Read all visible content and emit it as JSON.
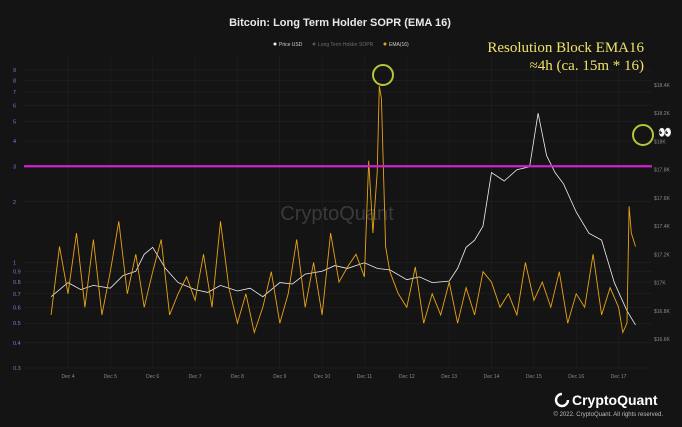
{
  "chart_data": {
    "type": "line",
    "title": "Bitcoin: Long Term Holder SOPR (EMA 16)",
    "legend": [
      "Price USD",
      "Long Term Holder SOPR",
      "EMA(16)"
    ],
    "x_ticks": [
      "Dec 4",
      "Dec 5",
      "Dec 6",
      "Dec 7",
      "Dec 8",
      "Dec 9",
      "Dec 10",
      "Dec 11",
      "Dec 12",
      "Dec 13",
      "Dec 14",
      "Dec 15",
      "Dec 16",
      "Dec 17"
    ],
    "left_axis": {
      "scale": "log",
      "ticks": [
        "9",
        "8",
        "7",
        "6",
        "5",
        "4",
        "3",
        "2",
        "1",
        "0.9",
        "0.8",
        "0.7",
        "0.6",
        "0.5",
        "0.4",
        "0.3"
      ]
    },
    "right_axis": {
      "ticks": [
        "$18.4K",
        "$18.2K",
        "$18K",
        "$17.8K",
        "$17.6K",
        "$17.4K",
        "$17.2K",
        "$17K",
        "$16.8K",
        "$16.6K"
      ]
    },
    "threshold_line": {
      "value": 3,
      "color": "#d020d0"
    },
    "series": [
      {
        "name": "Price USD",
        "color": "#f0f0f0",
        "x": [
          3.6,
          4.0,
          4.3,
          4.6,
          5.0,
          5.3,
          5.6,
          5.8,
          6.0,
          6.3,
          6.6,
          7.0,
          7.3,
          7.6,
          8.0,
          8.3,
          8.6,
          9.0,
          9.3,
          9.6,
          10.0,
          10.3,
          10.6,
          11.0,
          11.3,
          11.6,
          12.0,
          12.3,
          12.6,
          13.0,
          13.2,
          13.4,
          13.6,
          13.8,
          14.0,
          14.3,
          14.6,
          14.9,
          15.1,
          15.3,
          15.5,
          15.7,
          16.0,
          16.3,
          16.6,
          16.9,
          17.2,
          17.4
        ],
        "y": [
          16900,
          17000,
          16950,
          16980,
          16960,
          17050,
          17080,
          17200,
          17250,
          17100,
          17000,
          16950,
          16930,
          16980,
          16940,
          16960,
          16900,
          17000,
          16990,
          17060,
          17080,
          17120,
          17100,
          17140,
          17100,
          17090,
          17020,
          17040,
          17000,
          17010,
          17100,
          17250,
          17300,
          17400,
          17780,
          17720,
          17800,
          17820,
          18200,
          17900,
          17780,
          17700,
          17500,
          17350,
          17300,
          17000,
          16800,
          16700
        ]
      },
      {
        "name": "EMA(16)",
        "color": "#e8a317",
        "x": [
          3.6,
          3.8,
          4.0,
          4.2,
          4.4,
          4.6,
          4.8,
          5.0,
          5.2,
          5.4,
          5.6,
          5.8,
          6.0,
          6.2,
          6.4,
          6.6,
          6.8,
          7.0,
          7.2,
          7.4,
          7.6,
          7.8,
          8.0,
          8.2,
          8.4,
          8.6,
          8.8,
          9.0,
          9.2,
          9.4,
          9.6,
          9.8,
          10.0,
          10.2,
          10.4,
          10.6,
          10.8,
          11.0,
          11.1,
          11.2,
          11.3,
          11.35,
          11.4,
          11.5,
          11.6,
          11.8,
          12.0,
          12.2,
          12.4,
          12.6,
          12.8,
          13.0,
          13.2,
          13.4,
          13.6,
          13.8,
          14.0,
          14.2,
          14.4,
          14.6,
          14.8,
          15.0,
          15.2,
          15.4,
          15.6,
          15.8,
          16.0,
          16.2,
          16.4,
          16.6,
          16.8,
          17.0,
          17.1,
          17.2,
          17.25,
          17.3,
          17.4
        ],
        "y": [
          0.55,
          1.2,
          0.7,
          1.4,
          0.6,
          1.3,
          0.55,
          0.9,
          1.6,
          0.7,
          1.1,
          0.6,
          0.9,
          1.3,
          0.55,
          0.7,
          0.85,
          0.65,
          1.1,
          0.6,
          1.6,
          0.75,
          0.5,
          0.7,
          0.45,
          0.6,
          0.9,
          0.5,
          0.7,
          1.3,
          0.6,
          1.0,
          0.55,
          1.4,
          0.8,
          0.95,
          1.1,
          0.85,
          3.2,
          1.4,
          2.8,
          7.5,
          6.5,
          1.2,
          0.9,
          0.7,
          0.6,
          0.95,
          0.5,
          0.7,
          0.55,
          0.8,
          0.5,
          0.75,
          0.55,
          0.9,
          0.8,
          0.6,
          0.7,
          0.55,
          1.0,
          0.65,
          0.8,
          0.6,
          0.9,
          0.5,
          0.7,
          0.6,
          1.1,
          0.55,
          0.75,
          0.6,
          0.45,
          0.5,
          1.9,
          1.4,
          1.2
        ]
      }
    ],
    "annotations": [
      "Resolution Block EMA16",
      "≈4h (ca. 15m * 16)",
      "👀"
    ]
  },
  "watermark": "CryptoQuant",
  "footer": {
    "brand": "CryptoQuant",
    "copyright": "© 2022. CryptoQuant. All rights reserved."
  }
}
